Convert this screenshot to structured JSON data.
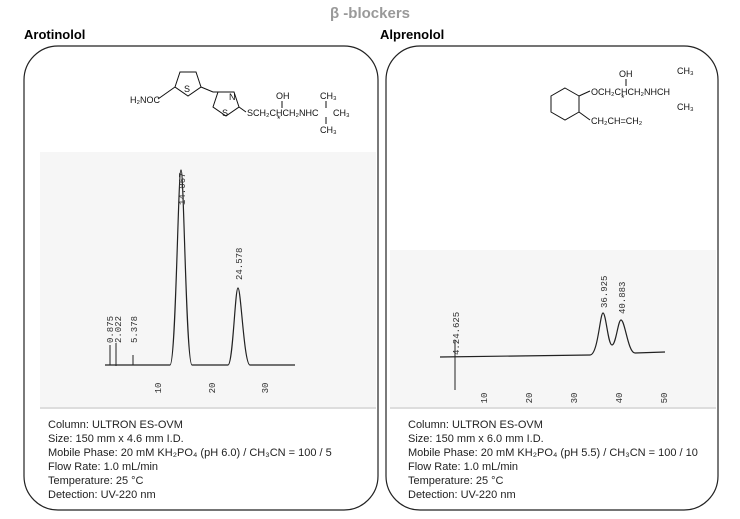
{
  "title": "β -blockers",
  "panels": [
    {
      "name": "Arotinolol",
      "structure": [
        "H₂NOC",
        "S",
        "N",
        "S",
        "OH",
        "SCH₂CHCH₂NHC",
        "CH₃",
        "CH₃",
        "CH₃",
        "*"
      ],
      "peak_labels": [
        "0.875",
        "2.022",
        "5.378",
        "14.067",
        "24.578"
      ],
      "x_ticks": [
        10,
        20,
        30
      ],
      "conditions": [
        "Column: ULTRON ES-OVM",
        "Size: 150 mm x 4.6 mm I.D.",
        "Mobile Phase: 20 mM KH₂PO₄ (pH 6.0) / CH₃CN = 100 / 5",
        "Flow Rate: 1.0 mL/min",
        "Temperature: 25 °C",
        "Detection: UV-220 nm"
      ]
    },
    {
      "name": "Alprenolol",
      "structure": [
        "OH",
        "OCH₂CHCH₂NHCH",
        "CH₃",
        "CH₃",
        "CH₂CH=CH₂",
        "*"
      ],
      "peak_labels": [
        "4.24.625",
        "36.925",
        "40.883"
      ],
      "x_ticks": [
        10,
        20,
        30,
        40,
        50
      ],
      "conditions": [
        "Column: ULTRON ES-OVM",
        "Size: 150 mm x 6.0 mm I.D.",
        "Mobile Phase: 20 mM KH₂PO₄ (pH 5.5) / CH₃CN = 100 / 10",
        "Flow Rate: 1.0 mL/min",
        "Temperature: 25 °C",
        "Detection: UV-220 nm"
      ]
    }
  ]
}
